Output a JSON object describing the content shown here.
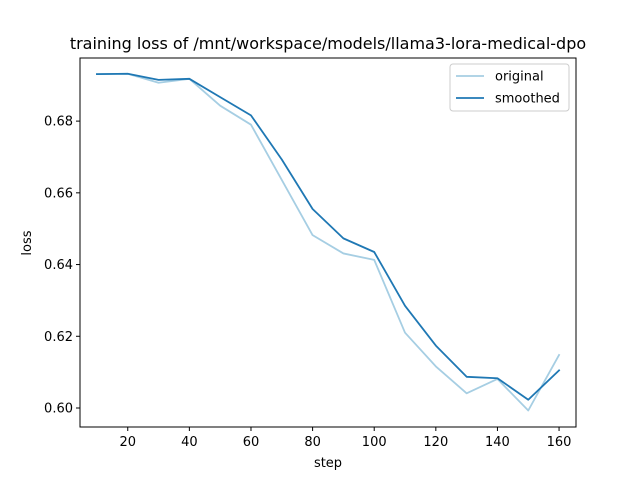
{
  "chart_data": {
    "type": "line",
    "title": "training loss of /mnt/workspace/models/llama3-lora-medical-dpo",
    "xlabel": "step",
    "ylabel": "loss",
    "xlim": [
      4.5,
      165.5
    ],
    "ylim": [
      0.5947,
      0.6976
    ],
    "xticks": [
      20,
      40,
      60,
      80,
      100,
      120,
      140,
      160
    ],
    "yticks": [
      0.6,
      0.62,
      0.64,
      0.66,
      0.68
    ],
    "xtick_labels": [
      "20",
      "40",
      "60",
      "80",
      "100",
      "120",
      "140",
      "160"
    ],
    "ytick_labels": [
      "0.60",
      "0.62",
      "0.64",
      "0.66",
      "0.68"
    ],
    "grid": false,
    "legend_position": "top-right",
    "series": [
      {
        "name": "original",
        "color": "#a6cee3",
        "x": [
          10,
          20,
          30,
          40,
          50,
          60,
          70,
          80,
          90,
          100,
          110,
          120,
          130,
          140,
          150,
          160
        ],
        "values": [
          0.6931,
          0.6932,
          0.6907,
          0.6918,
          0.6843,
          0.679,
          0.6636,
          0.6482,
          0.6431,
          0.6413,
          0.621,
          0.6116,
          0.6041,
          0.6081,
          0.5993,
          0.6148
        ]
      },
      {
        "name": "smoothed",
        "color": "#1f78b4",
        "x": [
          10,
          20,
          30,
          40,
          50,
          60,
          70,
          80,
          90,
          100,
          110,
          120,
          130,
          140,
          150,
          160
        ],
        "values": [
          0.6931,
          0.6932,
          0.6915,
          0.6918,
          0.6867,
          0.6816,
          0.6693,
          0.6555,
          0.6473,
          0.6435,
          0.6285,
          0.6174,
          0.6087,
          0.6083,
          0.6023,
          0.6105
        ]
      }
    ]
  }
}
